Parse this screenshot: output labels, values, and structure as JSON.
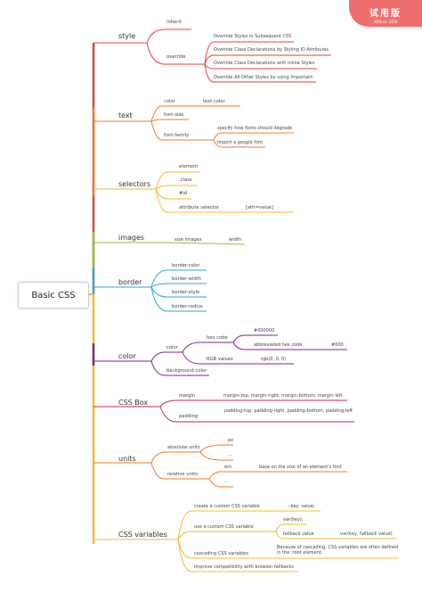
{
  "root": "Basic CSS",
  "watermark": {
    "title": "试用版",
    "subtitle": "XMind: ZEN"
  },
  "colors": {
    "style": "#e0403b",
    "text": "#f07a2a",
    "selectors": "#f5b82a",
    "images": "#8dc23b",
    "border": "#2ba8c9",
    "color": "#7a2a8a",
    "cssbox": "#c0245a",
    "units": "#f07a2a",
    "cssvariables": "#f5b82a",
    "trunk": "#f5b82a"
  },
  "branches": {
    "style": {
      "label": "style",
      "inherit": "inherit",
      "override": "override",
      "items": [
        "Override Styles in Subsequent CSS",
        "Override Class Declarations by Styling ID Attributes",
        "Override Class Declarations with Inline Styles",
        "Override All Other Styles by using Important"
      ]
    },
    "text": {
      "label": "text",
      "color": "color",
      "color_value": "text color",
      "font_size": "font-size",
      "font_family": "font-family",
      "family_items": [
        "specify how fonts should degrade",
        "import a google font"
      ]
    },
    "selectors": {
      "label": "selectors",
      "items": [
        "element",
        ".class",
        "#id",
        "attribute selector"
      ],
      "attr_value": "[attr=value]"
    },
    "images": {
      "label": "images",
      "size": "size images",
      "size_value": "width"
    },
    "border": {
      "label": "border",
      "items": [
        "border-color",
        "border-width",
        "border-style",
        "border-radius"
      ]
    },
    "color": {
      "label": "color",
      "color": "color",
      "hex": "hex code",
      "hex_value": "#000000",
      "abbrev": "abbreviated hex code",
      "abbrev_value": "#000",
      "rgb": "RGB values",
      "rgb_value": "rgb(0, 0, 0)",
      "bg": "background-color"
    },
    "cssbox": {
      "label": "CSS Box",
      "margin": "margin",
      "margin_value": "margin-top, margin-right, margin-bottom, margin-left",
      "padding": "padding",
      "padding_value": "padding-top, padding-right, padding-bottom, padding-left"
    },
    "units": {
      "label": "units",
      "absolute": "absolute units",
      "abs_items": [
        "px",
        "..."
      ],
      "relative": "relative units",
      "rel_items": [
        "em",
        "..."
      ],
      "em_value": "base on the size of an element's font"
    },
    "cssvariables": {
      "label": "CSS variables",
      "create": "create a custom CSS variable",
      "create_value": "--key: value;",
      "use": "use a custom CSS variable",
      "use_value": "var(key);",
      "fallback": "fallback value",
      "fallback_value": "var(key, fallback value)",
      "cascading": "cascading CSS variables",
      "cascading_value": "Because of cascading, CSS variables are often defined in the :root element.",
      "improve": "improve compatibility with browser fallbacks"
    }
  }
}
